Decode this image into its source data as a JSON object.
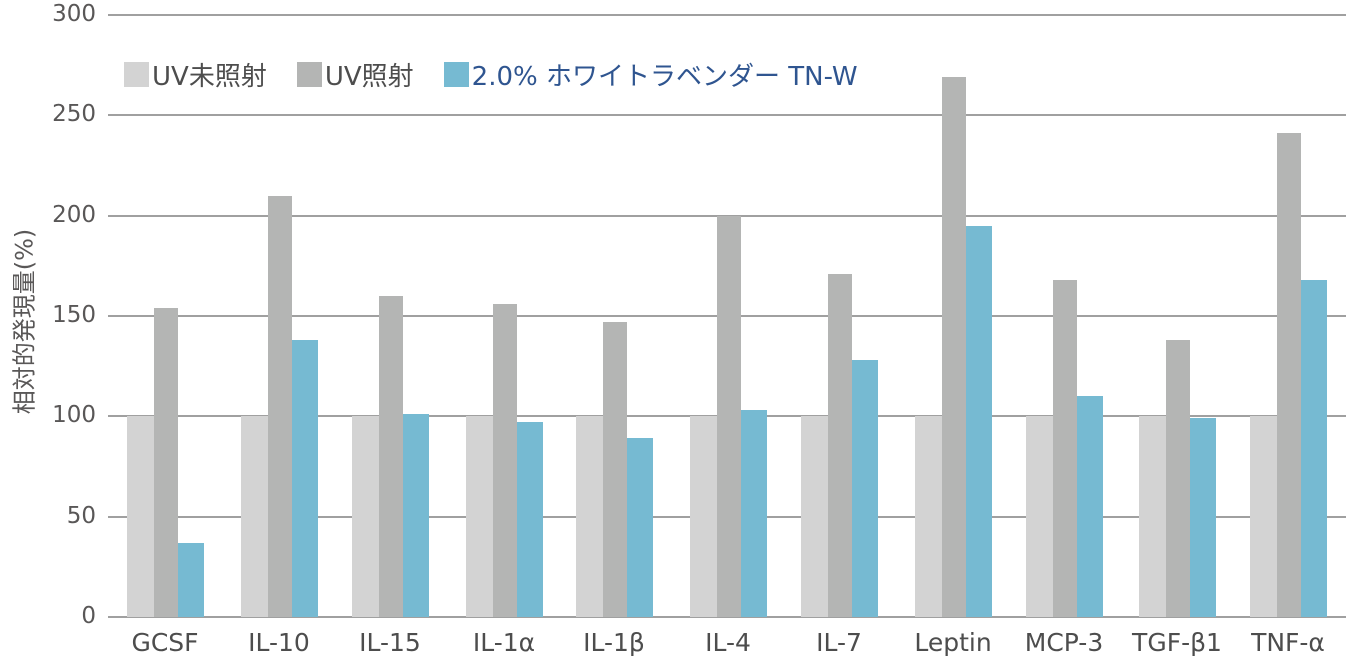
{
  "chart_data": {
    "type": "bar",
    "title": "",
    "xlabel": "",
    "ylabel": "相対的発現量(%)",
    "ylim": [
      0,
      300
    ],
    "yticks": [
      0,
      50,
      100,
      150,
      200,
      250,
      300
    ],
    "grid": true,
    "legend_position": "top-left inside",
    "categories": [
      "GCSF",
      "IL-10",
      "IL-15",
      "IL-1α",
      "IL-1β",
      "IL-4",
      "IL-7",
      "Leptin",
      "MCP-3",
      "TGF-β1",
      "TNF-α"
    ],
    "series": [
      {
        "name": "UV未照射",
        "color": "#d3d3d3",
        "values": [
          100,
          100,
          100,
          100,
          100,
          100,
          100,
          100,
          100,
          100,
          100
        ]
      },
      {
        "name": "UV照射",
        "color": "#b4b5b4",
        "values": [
          154,
          210,
          160,
          156,
          147,
          200,
          171,
          269,
          168,
          138,
          241
        ]
      },
      {
        "name": "2.0% ホワイトラベンダー TN-W",
        "color": "#76bad2",
        "values": [
          37,
          138,
          101,
          97,
          89,
          103,
          128,
          195,
          110,
          99,
          168
        ]
      }
    ]
  },
  "legend": {
    "items": [
      {
        "label": "UV未照射",
        "color": "#d3d3d3",
        "text_color": "#4d4d4d"
      },
      {
        "label": "UV照射",
        "color": "#b4b5b4",
        "text_color": "#4d4d4d"
      },
      {
        "label": "2.0% ホワイトラベンダー TN-W",
        "color": "#76bad2",
        "text_color": "#2f5590"
      }
    ]
  }
}
